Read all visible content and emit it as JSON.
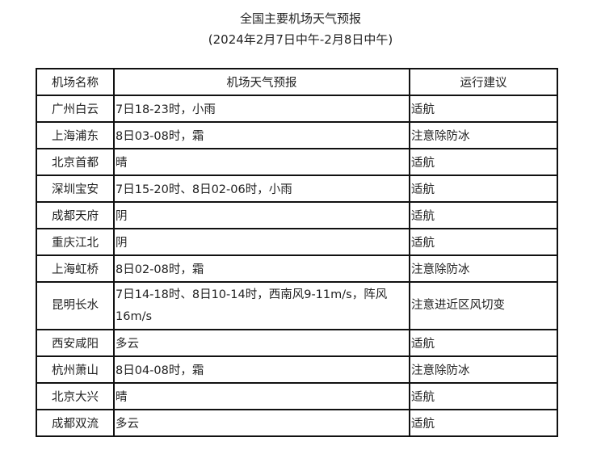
{
  "title": "全国主要机场天气预报",
  "subtitle": "(2024年2月7日中午-2月8日中午)",
  "table": {
    "headers": [
      "机场名称",
      "机场天气预报",
      "运行建议"
    ],
    "rows": [
      {
        "airport": "广州白云",
        "forecast": "7日18-23时，小雨",
        "advice": "适航"
      },
      {
        "airport": "上海浦东",
        "forecast": "8日03-08时，霜",
        "advice": "注意除防冰"
      },
      {
        "airport": "北京首都",
        "forecast": "晴",
        "advice": "适航"
      },
      {
        "airport": "深圳宝安",
        "forecast": "7日15-20时、8日02-06时，小雨",
        "advice": "适航"
      },
      {
        "airport": "成都天府",
        "forecast": "阴",
        "advice": "适航"
      },
      {
        "airport": "重庆江北",
        "forecast": "阴",
        "advice": "适航"
      },
      {
        "airport": "上海虹桥",
        "forecast": "8日02-08时，霜",
        "advice": "注意除防冰"
      },
      {
        "airport": "昆明长水",
        "forecast": "7日14-18时、8日10-14时，西南风9-11m/s，阵风16m/s",
        "advice": "注意进近区风切变"
      },
      {
        "airport": "西安咸阳",
        "forecast": "多云",
        "advice": "适航"
      },
      {
        "airport": "杭州萧山",
        "forecast": "8日04-08时，霜",
        "advice": "注意除防冰"
      },
      {
        "airport": "北京大兴",
        "forecast": "晴",
        "advice": "适航"
      },
      {
        "airport": "成都双流",
        "forecast": "多云",
        "advice": "适航"
      }
    ]
  }
}
